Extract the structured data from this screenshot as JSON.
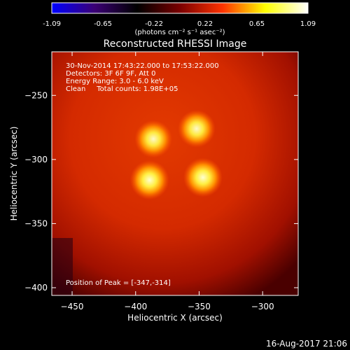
{
  "colorbar": {
    "ticks": [
      "-1.09",
      "-0.65",
      "-0.22",
      "0.22",
      "0.65",
      "1.09"
    ],
    "unit_label": "(photons cm⁻² s⁻¹ asec⁻²)",
    "colormap": [
      "#0000ff",
      "#3b0075",
      "#000000",
      "#7a0000",
      "#ff3300",
      "#ffff00",
      "#ffffff"
    ]
  },
  "chart_data": {
    "type": "heatmap",
    "title": "Reconstructed RHESSI Image",
    "xlabel": "Heliocentric X (arcsec)",
    "ylabel": "Heliocentric Y (arcsec)",
    "xlim": [
      -466,
      -272
    ],
    "ylim": [
      -406,
      -216
    ],
    "x_ticks": [
      -450,
      -400,
      -350,
      -300
    ],
    "y_ticks": [
      -250,
      -300,
      -350,
      -400
    ],
    "sources": [
      {
        "x": -386,
        "y": -284,
        "intensity": 0.85
      },
      {
        "x": -352,
        "y": -276,
        "intensity": 0.85
      },
      {
        "x": -389,
        "y": -316,
        "intensity": 1.0
      },
      {
        "x": -347,
        "y": -314,
        "intensity": 1.0
      }
    ],
    "annotations": [
      "30-Nov-2014 17:43:22.000 to 17:53:22.000",
      "Detectors: 3F 6F 9F, Att 0",
      "Energy Range: 3.0 - 6.0 keV",
      "Clean     Total counts: 1.98E+05"
    ],
    "peak_label": "Position of Peak = [-347,-314]"
  },
  "footer": {
    "timestamp": "16-Aug-2017 21:06"
  }
}
